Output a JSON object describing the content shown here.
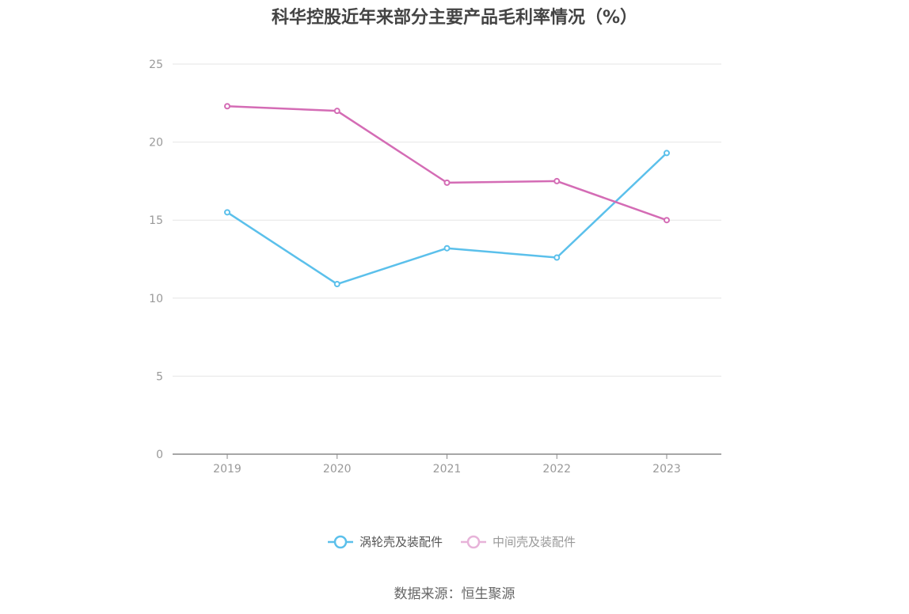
{
  "chart_data": {
    "type": "line",
    "title": "科华控股近年来部分主要产品毛利率情况（%）",
    "x": [
      "2019",
      "2020",
      "2021",
      "2022",
      "2023"
    ],
    "y_ticks": [
      "0",
      "5",
      "10",
      "15",
      "20",
      "25"
    ],
    "ylim": [
      0,
      25
    ],
    "grid": true,
    "legend_position": "bottom",
    "series": [
      {
        "name": "涡轮壳及装配件",
        "color": "#5bc0eb",
        "values": [
          15.5,
          10.9,
          13.2,
          12.6,
          19.3
        ]
      },
      {
        "name": "中间壳及装配件",
        "color": "#d46cb5",
        "values": [
          22.3,
          22.0,
          17.4,
          17.5,
          15.0
        ]
      }
    ]
  },
  "source": "数据来源：恒生聚源"
}
